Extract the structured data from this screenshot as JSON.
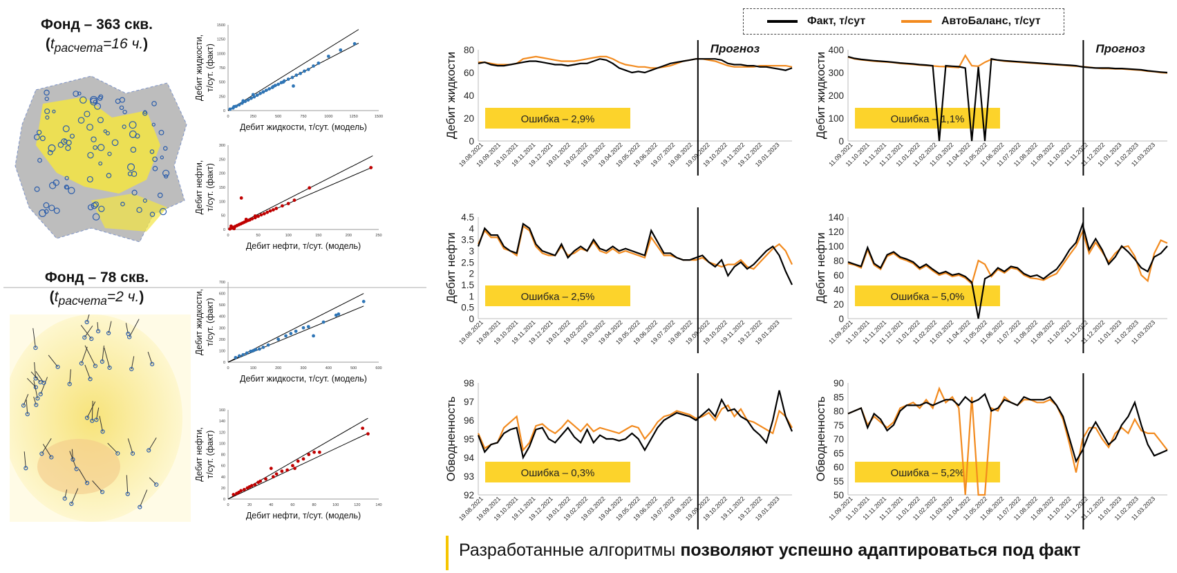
{
  "funds": [
    {
      "title": "Фонд – 363 скв.",
      "t_label": "t",
      "t_sub": "расчета",
      "t_value": "=16 ч.",
      "paren_open": "(",
      "paren_close": ")"
    },
    {
      "title": "Фонд – 78 скв.",
      "t_label": "t",
      "t_sub": "расчета",
      "t_value": "=2 ч.",
      "paren_open": "(",
      "paren_close": ")"
    }
  ],
  "legend": {
    "fact": "Факт, т/сут",
    "autobalance": "АвтоБаланс, т/сут",
    "fact_color": "#000000",
    "auto_color": "#f28a1e"
  },
  "footer": {
    "normal": "Разработанные алгоритмы ",
    "bold": "позволяют успешно адаптироваться под факт"
  },
  "forecast_label": "Прогноз",
  "colors": {
    "blue": "#2e75b6",
    "red": "#c00000",
    "error_box": "#fcd32b",
    "accent": "#f6c500"
  },
  "chart_data": [
    {
      "id": "s1",
      "type": "scatter",
      "xlabel": "Дебит жидкости, т/сут. (модель)",
      "ylabel": [
        "Дебит жидкости,",
        "т/сут. (факт)"
      ],
      "xlim": [
        0,
        1500
      ],
      "ylim": [
        0,
        1500
      ],
      "xticks": [
        0,
        250,
        500,
        750,
        1000,
        1250,
        1500
      ],
      "yticks": [
        0,
        250,
        500,
        750,
        1000,
        1250,
        1500
      ],
      "color": "#2e75b6",
      "lines": [
        [
          0,
          0,
          1300,
          1420
        ],
        [
          0,
          0,
          1300,
          1180
        ]
      ],
      "x": [
        20,
        50,
        80,
        110,
        140,
        170,
        200,
        230,
        260,
        290,
        320,
        350,
        380,
        410,
        440,
        470,
        500,
        530,
        560,
        600,
        640,
        680,
        720,
        760,
        800,
        850,
        900,
        1000,
        1120,
        1260,
        60,
        150,
        250,
        350,
        450,
        550,
        650
      ],
      "y": [
        25,
        45,
        75,
        100,
        130,
        160,
        185,
        215,
        240,
        270,
        300,
        325,
        355,
        380,
        405,
        440,
        460,
        490,
        520,
        550,
        580,
        620,
        650,
        690,
        720,
        780,
        830,
        950,
        1060,
        1170,
        70,
        170,
        280,
        330,
        420,
        500,
        430
      ]
    },
    {
      "id": "s2",
      "type": "scatter",
      "xlabel": "Дебит нефти, т/сут. (модель)",
      "ylabel": [
        "Дебит нефти,",
        "т/сут. (факт)"
      ],
      "xlim": [
        0,
        250
      ],
      "ylim": [
        0,
        300
      ],
      "xticks": [
        0,
        50,
        100,
        150,
        200,
        250
      ],
      "yticks": [
        0,
        50,
        100,
        150,
        200,
        250,
        300
      ],
      "color": "#c00000",
      "lines": [
        [
          0,
          0,
          240,
          262
        ],
        [
          0,
          0,
          240,
          222
        ]
      ],
      "x": [
        3,
        6,
        9,
        12,
        15,
        18,
        21,
        24,
        27,
        30,
        33,
        36,
        40,
        45,
        50,
        55,
        60,
        65,
        70,
        75,
        80,
        90,
        100,
        110,
        135,
        237,
        22,
        10,
        5,
        30,
        45
      ],
      "y": [
        2,
        5,
        8,
        11,
        14,
        17,
        20,
        23,
        26,
        29,
        32,
        34,
        38,
        42,
        47,
        52,
        56,
        61,
        66,
        70,
        75,
        84,
        92,
        104,
        148,
        220,
        112,
        3,
        12,
        36,
        48
      ]
    },
    {
      "id": "s3",
      "type": "scatter",
      "xlabel": "Дебит жидкости, т/сут. (модель)",
      "ylabel": [
        "Дебит жидкости,",
        "т/сут. (факт)"
      ],
      "xlim": [
        0,
        600
      ],
      "ylim": [
        0,
        700
      ],
      "xticks": [
        0,
        100,
        200,
        300,
        400,
        500,
        600
      ],
      "yticks": [
        0,
        100,
        200,
        300,
        400,
        500,
        600,
        700
      ],
      "color": "#2e75b6",
      "lines": [
        [
          0,
          0,
          540,
          600
        ],
        [
          0,
          0,
          540,
          490
        ]
      ],
      "x": [
        30,
        45,
        60,
        75,
        90,
        100,
        110,
        125,
        140,
        160,
        200,
        230,
        250,
        270,
        300,
        320,
        340,
        380,
        430,
        440,
        540
      ],
      "y": [
        40,
        55,
        65,
        80,
        95,
        100,
        110,
        115,
        130,
        150,
        200,
        230,
        250,
        270,
        300,
        310,
        230,
        350,
        410,
        420,
        530
      ]
    },
    {
      "id": "s4",
      "type": "scatter",
      "xlabel": "Дебит нефти, т/сут. (модель)",
      "ylabel": [
        "Дебит нефти,",
        "т/сут. (факт)"
      ],
      "xlim": [
        0,
        140
      ],
      "ylim": [
        0,
        160
      ],
      "xticks": [
        0,
        20,
        40,
        60,
        80,
        100,
        120,
        140
      ],
      "yticks": [
        0,
        20,
        40,
        60,
        80,
        100,
        120,
        140,
        160
      ],
      "color": "#c00000",
      "lines": [
        [
          0,
          0,
          130,
          145
        ],
        [
          0,
          0,
          130,
          118
        ]
      ],
      "x": [
        5,
        8,
        10,
        12,
        15,
        18,
        20,
        22,
        25,
        28,
        30,
        35,
        40,
        42,
        45,
        50,
        55,
        60,
        62,
        65,
        70,
        75,
        80,
        85,
        125,
        130
      ],
      "y": [
        8,
        10,
        12,
        15,
        17,
        20,
        22,
        24,
        26,
        30,
        32,
        36,
        55,
        40,
        45,
        50,
        52,
        60,
        55,
        68,
        72,
        80,
        84,
        84,
        127,
        117
      ]
    },
    {
      "id": "c1",
      "type": "line",
      "ylabel": "Дебит жидкости",
      "ylim": [
        0,
        80
      ],
      "yticks": [
        0,
        20,
        40,
        60,
        80
      ],
      "xticks": [
        "19.08.2021",
        "19.09.2021",
        "19.10.2021",
        "19.11.2021",
        "19.12.2021",
        "19.01.2022",
        "19.02.2022",
        "19.03.2022",
        "19.04.2022",
        "19.05.2022",
        "19.06.2022",
        "19.07.2022",
        "19.08.2022",
        "19.09.2022",
        "19.10.2022",
        "19.11.2022",
        "19.12.2022",
        "19.01.2023"
      ],
      "forecast_at": 12.6,
      "error": "Ошибка – 2,9%",
      "fact": [
        68,
        69,
        67,
        66,
        66,
        67,
        68,
        69,
        70,
        70,
        69,
        68,
        67,
        67,
        66,
        67,
        68,
        68,
        70,
        72,
        71,
        68,
        64,
        62,
        60,
        61,
        60,
        62,
        64,
        66,
        68,
        69,
        70,
        71,
        72,
        72,
        72,
        72,
        71,
        68,
        67,
        67,
        66,
        66,
        65,
        65,
        64,
        63,
        62,
        64
      ],
      "auto": [
        69,
        69,
        68,
        67,
        67,
        67,
        68,
        72,
        73,
        74,
        73,
        72,
        71,
        70,
        70,
        70,
        71,
        72,
        73,
        74,
        74,
        72,
        69,
        67,
        66,
        65,
        65,
        64,
        64,
        65,
        66,
        68,
        70,
        71,
        72,
        72,
        71,
        70,
        68,
        66,
        65,
        65,
        65,
        65,
        66,
        66,
        66,
        66,
        66,
        65
      ]
    },
    {
      "id": "c2",
      "type": "line",
      "ylabel": "Дебит жидкости",
      "ylim": [
        0,
        400
      ],
      "yticks": [
        0,
        100,
        200,
        300,
        400
      ],
      "xticks": [
        "11.09.2021",
        "11.10.2021",
        "11.11.2021",
        "11.12.2021",
        "11.01.2022",
        "11.02.2022",
        "11.03.2022",
        "11.04.2022",
        "11.05.2022",
        "11.06.2022",
        "11.07.2022",
        "11.08.2022",
        "11.09.2022",
        "11.10.2022",
        "11.11.2022",
        "11.12.2022",
        "11.01.2023",
        "11.02.2023",
        "11.03.2023"
      ],
      "forecast_at": 14.0,
      "error": "Ошибка – 1,1%",
      "fact": [
        370,
        362,
        358,
        355,
        352,
        350,
        348,
        345,
        342,
        340,
        338,
        335,
        333,
        330,
        0,
        330,
        328,
        326,
        320,
        0,
        325,
        0,
        360,
        355,
        352,
        350,
        348,
        346,
        344,
        342,
        340,
        338,
        336,
        334,
        332,
        330,
        325,
        322,
        320,
        320,
        320,
        318,
        318,
        316,
        314,
        312,
        308,
        305,
        302,
        300
      ],
      "auto": [
        368,
        360,
        356,
        353,
        350,
        348,
        346,
        344,
        340,
        338,
        336,
        333,
        331,
        329,
        327,
        326,
        324,
        322,
        375,
        330,
        328,
        345,
        358,
        354,
        350,
        348,
        346,
        344,
        342,
        340,
        338,
        336,
        334,
        332,
        330,
        328,
        326,
        323,
        320,
        318,
        318,
        316,
        316,
        314,
        312,
        310,
        306,
        304,
        300,
        298
      ]
    },
    {
      "id": "c3",
      "type": "line",
      "ylabel": "Дебит нефти",
      "ylim": [
        0,
        4.5
      ],
      "yticks": [
        0,
        0.5,
        1,
        1.5,
        2,
        2.5,
        3,
        3.5,
        4,
        4.5
      ],
      "xticks": [
        "19.08.2021",
        "19.09.2021",
        "19.10.2021",
        "19.11.2021",
        "19.12.2021",
        "19.01.2022",
        "19.02.2022",
        "19.03.2022",
        "19.04.2022",
        "19.05.2022",
        "19.06.2022",
        "19.07.2022",
        "19.08.2022",
        "19.09.2022",
        "19.10.2022",
        "19.11.2022",
        "19.12.2022",
        "19.01.2023"
      ],
      "forecast_at": 12.6,
      "error": "Ошибка – 2,5%",
      "fact": [
        3.2,
        4.0,
        3.7,
        3.7,
        3.2,
        3.0,
        2.9,
        4.2,
        4.0,
        3.3,
        3.0,
        2.9,
        2.8,
        3.3,
        2.7,
        3.0,
        3.2,
        3.0,
        3.5,
        3.1,
        3.0,
        3.2,
        3.0,
        3.1,
        3.0,
        2.9,
        2.8,
        3.9,
        3.4,
        2.9,
        2.9,
        2.7,
        2.6,
        2.6,
        2.7,
        2.8,
        2.5,
        2.3,
        2.6,
        1.9,
        2.3,
        2.5,
        2.2,
        2.4,
        2.7,
        3.0,
        3.2,
        2.8,
        2.1,
        1.5
      ],
      "auto": [
        3.3,
        3.9,
        3.6,
        3.6,
        3.1,
        3.0,
        2.8,
        4.1,
        3.9,
        3.2,
        2.9,
        2.8,
        2.8,
        3.2,
        2.8,
        2.9,
        3.1,
        3.0,
        3.4,
        3.0,
        2.9,
        3.1,
        2.9,
        3.0,
        2.9,
        2.8,
        2.7,
        3.6,
        3.2,
        2.8,
        2.8,
        2.7,
        2.6,
        2.6,
        2.6,
        2.7,
        2.5,
        2.4,
        2.3,
        2.4,
        2.4,
        2.6,
        2.3,
        2.2,
        2.5,
        2.8,
        3.1,
        3.3,
        3.0,
        2.4
      ]
    },
    {
      "id": "c4",
      "type": "line",
      "ylabel": "Дебит нефти",
      "ylim": [
        0,
        140
      ],
      "yticks": [
        0,
        20,
        40,
        60,
        80,
        100,
        120,
        140
      ],
      "xticks": [
        "11.09.2021",
        "11.10.2021",
        "11.11.2021",
        "11.12.2021",
        "11.01.2022",
        "11.02.2022",
        "11.03.2022",
        "11.04.2022",
        "11.05.2022",
        "11.06.2022",
        "11.07.2022",
        "11.08.2022",
        "11.09.2022",
        "11.10.2022",
        "11.11.2022",
        "11.12.2022",
        "11.01.2023",
        "11.02.2023",
        "11.03.2023"
      ],
      "forecast_at": 14.0,
      "error": "Ошибка – 5,0%",
      "fact": [
        78,
        75,
        72,
        98,
        76,
        70,
        88,
        92,
        85,
        82,
        78,
        70,
        75,
        68,
        62,
        65,
        60,
        62,
        58,
        50,
        0,
        55,
        60,
        70,
        65,
        72,
        70,
        62,
        58,
        60,
        55,
        62,
        68,
        80,
        95,
        105,
        130,
        95,
        110,
        95,
        75,
        85,
        100,
        92,
        82,
        70,
        65,
        85,
        90,
        100
      ],
      "auto": [
        76,
        74,
        70,
        95,
        74,
        68,
        86,
        90,
        83,
        80,
        76,
        68,
        73,
        66,
        60,
        63,
        58,
        60,
        56,
        48,
        80,
        75,
        58,
        68,
        63,
        70,
        68,
        60,
        56,
        55,
        53,
        58,
        62,
        75,
        88,
        100,
        120,
        90,
        105,
        92,
        78,
        90,
        98,
        100,
        86,
        60,
        52,
        90,
        108,
        104
      ]
    },
    {
      "id": "c5",
      "type": "line",
      "ylabel": "Обводненность",
      "ylim": [
        92,
        98
      ],
      "yticks": [
        92,
        93,
        94,
        95,
        96,
        97,
        98
      ],
      "xticks": [
        "19.08.2021",
        "19.09.2021",
        "19.10.2021",
        "19.11.2021",
        "19.12.2021",
        "19.01.2022",
        "19.02.2022",
        "19.03.2022",
        "19.04.2022",
        "19.05.2022",
        "19.06.2022",
        "19.07.2022",
        "19.08.2022",
        "19.09.2022",
        "19.10.2022",
        "19.11.2022",
        "19.12.2022",
        "19.01.2023"
      ],
      "forecast_at": 12.6,
      "error": "Ошибка – 0,3%",
      "fact": [
        95.2,
        94.3,
        94.7,
        94.8,
        95.3,
        95.5,
        95.6,
        94.0,
        94.6,
        95.5,
        95.6,
        95.0,
        94.8,
        95.2,
        95.6,
        95.1,
        94.8,
        95.5,
        94.8,
        95.2,
        95.0,
        95.0,
        94.9,
        95.0,
        95.3,
        95.0,
        94.4,
        95.0,
        95.6,
        96.0,
        96.2,
        96.4,
        96.3,
        96.2,
        96.0,
        96.3,
        96.6,
        96.2,
        97.1,
        96.5,
        96.6,
        96.2,
        96.0,
        95.5,
        95.2,
        94.8,
        96.0,
        97.6,
        96.2,
        95.4
      ],
      "auto": [
        95.3,
        94.5,
        94.7,
        94.8,
        95.6,
        95.9,
        96.2,
        94.4,
        94.8,
        95.7,
        95.8,
        95.5,
        95.3,
        95.6,
        96.0,
        95.7,
        95.4,
        95.8,
        95.4,
        95.6,
        95.5,
        95.4,
        95.3,
        95.5,
        95.7,
        95.6,
        95.0,
        95.4,
        95.9,
        96.2,
        96.3,
        96.5,
        96.4,
        96.3,
        96.1,
        96.2,
        96.4,
        96.0,
        96.6,
        96.8,
        96.2,
        96.6,
        96.0,
        95.9,
        95.7,
        95.5,
        95.3,
        96.5,
        96.2,
        95.6
      ]
    },
    {
      "id": "c6",
      "type": "line",
      "ylabel": "Обводненность",
      "ylim": [
        50,
        90
      ],
      "yticks": [
        50,
        55,
        60,
        65,
        70,
        75,
        80,
        85,
        90
      ],
      "xticks": [
        "11.09.2021",
        "11.10.2021",
        "11.11.2021",
        "11.12.2021",
        "11.01.2022",
        "11.02.2022",
        "11.03.2022",
        "11.04.2022",
        "11.05.2022",
        "11.06.2022",
        "11.07.2022",
        "11.08.2022",
        "11.09.2022",
        "11.10.2022",
        "11.11.2022",
        "11.12.2022",
        "11.01.2023",
        "11.02.2023",
        "11.03.2023"
      ],
      "forecast_at": 14.0,
      "error": "Ошибка – 5,2%",
      "fact": [
        79,
        80,
        81,
        74,
        79,
        77,
        73,
        75,
        80,
        82,
        82,
        82,
        83,
        82,
        83,
        84,
        84,
        82,
        85,
        83,
        84,
        86,
        80,
        81,
        84,
        83,
        82,
        85,
        84,
        84,
        84,
        85,
        82,
        78,
        70,
        62,
        66,
        72,
        76,
        72,
        68,
        70,
        75,
        78,
        83,
        75,
        68,
        64,
        65,
        66
      ],
      "auto": [
        79,
        80,
        81,
        75,
        78,
        76,
        74,
        76,
        81,
        82,
        83,
        81,
        84,
        81,
        88,
        83,
        85,
        81,
        50,
        85,
        50,
        50,
        81,
        80,
        85,
        83,
        82,
        84,
        84,
        83,
        83,
        84,
        82,
        77,
        68,
        58,
        70,
        74,
        74,
        70,
        67,
        72,
        74,
        72,
        77,
        73,
        72,
        72,
        69,
        66
      ]
    }
  ]
}
